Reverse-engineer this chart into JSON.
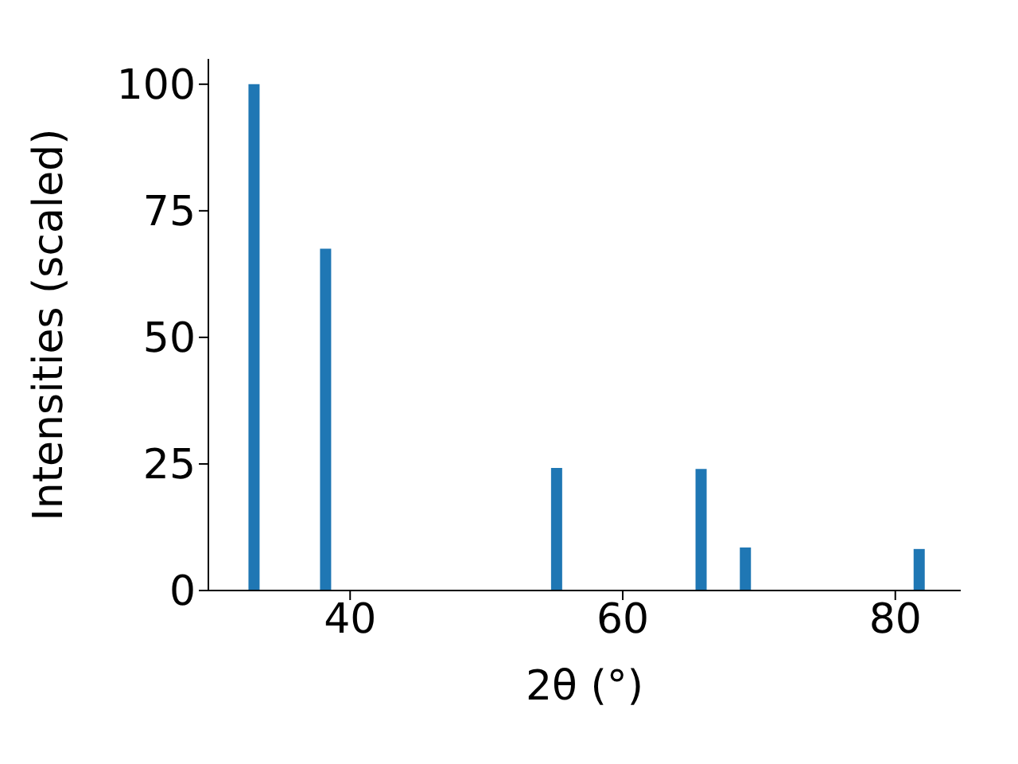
{
  "chart_data": {
    "type": "bar",
    "xlabel": "2θ (°)",
    "ylabel": "Intensities (scaled)",
    "x": [
      33.0,
      38.25,
      55.2,
      65.8,
      69.05,
      81.8
    ],
    "values": [
      100,
      67.5,
      24.2,
      24.0,
      8.5,
      8.2
    ],
    "color": "#1f77b4",
    "xlim": [
      29.6,
      84.8
    ],
    "xticks": [
      40,
      60,
      80
    ],
    "ylim": [
      0,
      105
    ],
    "yticks": [
      0,
      25,
      50,
      75,
      100
    ],
    "grid": false
  }
}
